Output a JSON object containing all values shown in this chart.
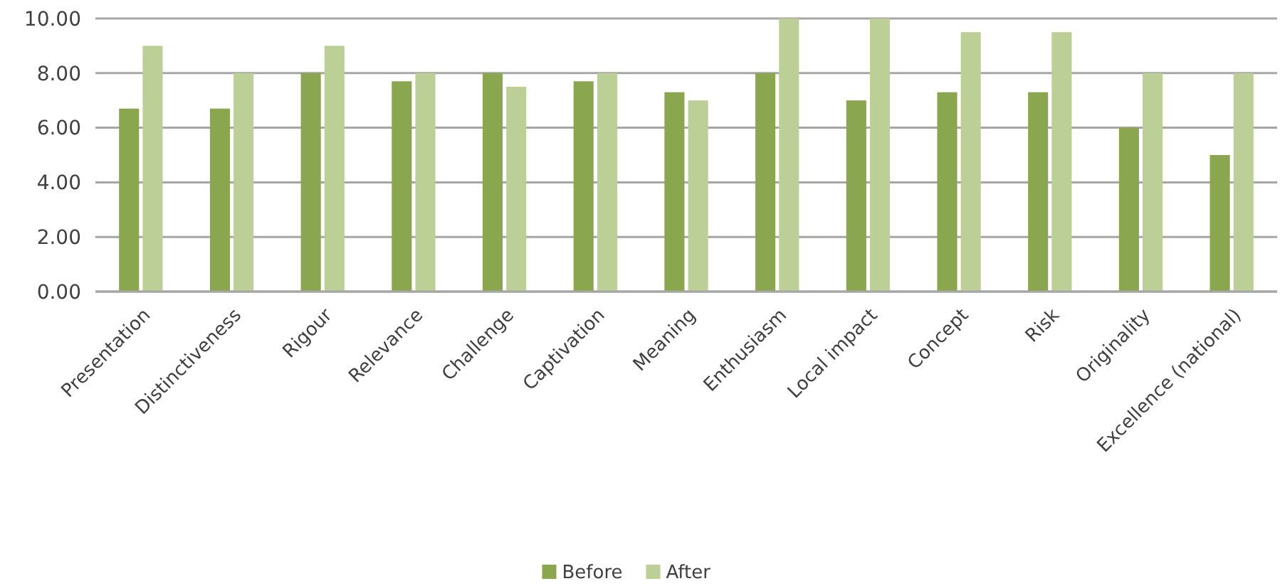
{
  "chart_data": {
    "type": "bar",
    "categories": [
      "Presentation",
      "Distinctiveness",
      "Rigour",
      "Relevance",
      "Challenge",
      "Captivation",
      "Meaning",
      "Enthusiasm",
      "Local impact",
      "Concept",
      "Risk",
      "Originality",
      "Excellence (national)"
    ],
    "series": [
      {
        "name": "Before",
        "color": "#8aa64e",
        "values": [
          6.7,
          6.7,
          8,
          7.7,
          8,
          7.7,
          7.3,
          8,
          7,
          7.3,
          7.3,
          6,
          5
        ]
      },
      {
        "name": "After",
        "color": "#bbcf97",
        "values": [
          9,
          8,
          9,
          8,
          7.5,
          8,
          7,
          10,
          10,
          9.5,
          9.5,
          8,
          8
        ]
      }
    ],
    "ylim": [
      0,
      10
    ],
    "yticks": [
      {
        "value": 0,
        "label": "0.00"
      },
      {
        "value": 2,
        "label": "2.00"
      },
      {
        "value": 4,
        "label": "4.00"
      },
      {
        "value": 6,
        "label": "6.00"
      },
      {
        "value": 8,
        "label": "8.00"
      },
      {
        "value": 10,
        "label": "10.00"
      }
    ],
    "grid": "y",
    "legend": "bottom"
  }
}
